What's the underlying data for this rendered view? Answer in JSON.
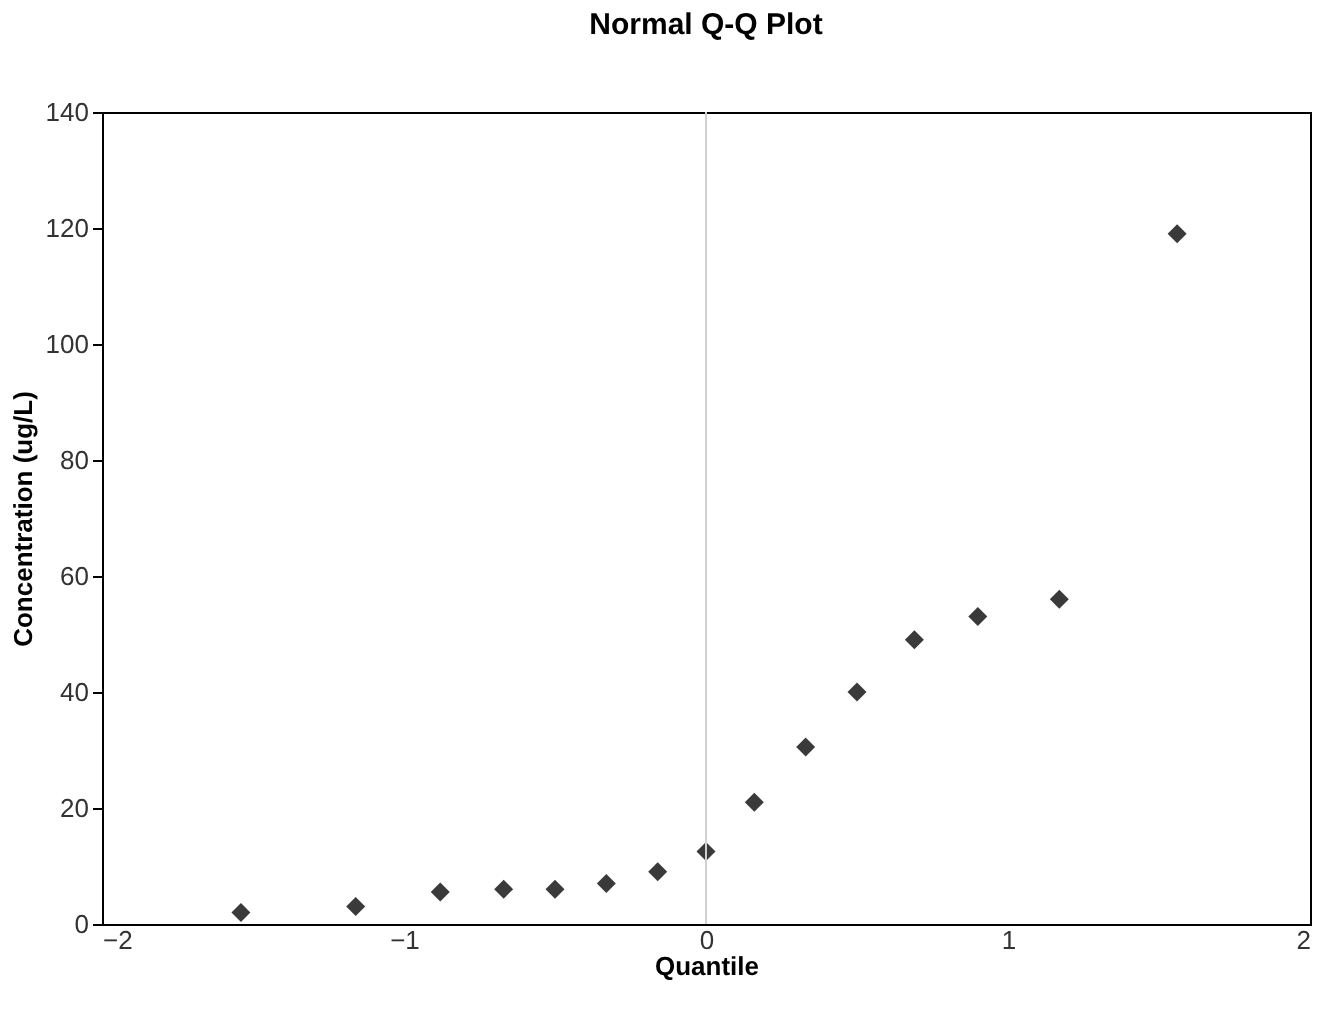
{
  "chart_data": {
    "type": "scatter",
    "title": "Normal Q-Q Plot",
    "xlabel": "Quantile",
    "ylabel": "Concentration (ug/L)",
    "x": [
      -1.54,
      -1.16,
      -0.88,
      -0.67,
      -0.5,
      -0.33,
      -0.16,
      0.0,
      0.16,
      0.33,
      0.5,
      0.69,
      0.9,
      1.17,
      1.56
    ],
    "series": [
      {
        "color": "#3a3a3a",
        "values": [
          2,
          3,
          5.5,
          6,
          6,
          7,
          9,
          12.5,
          21,
          30.5,
          40,
          49,
          53,
          56,
          119
        ]
      }
    ],
    "xlim": [
      -2,
      2
    ],
    "xticks": [
      -2,
      -1,
      0,
      1,
      2
    ],
    "ylim": [
      0,
      140
    ],
    "yticks": [
      0,
      20,
      40,
      60,
      80,
      100,
      120,
      140
    ],
    "ref_lines": [
      {
        "axis": "x",
        "value": 0,
        "color": "#d0d0d0"
      }
    ],
    "marker": "diamond",
    "grid": false,
    "legend": false
  }
}
